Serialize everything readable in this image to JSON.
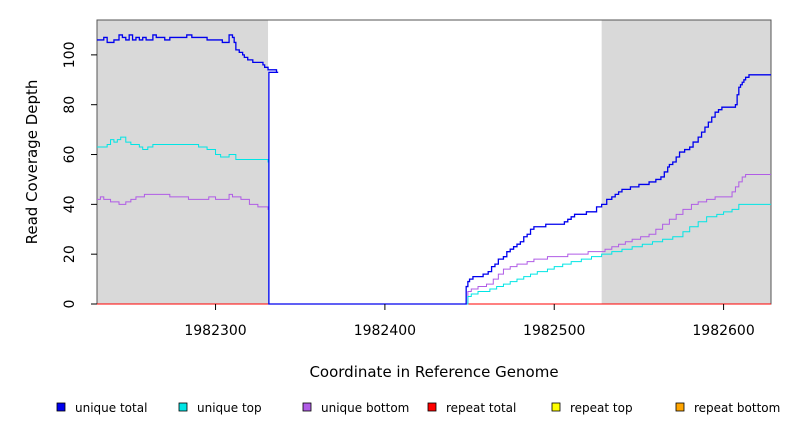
{
  "chart_data": {
    "type": "line",
    "xlabel": "Coordinate in Reference Genome",
    "ylabel": "Read Coverage Depth",
    "xlim": [
      1982230,
      1982628
    ],
    "ylim": [
      0,
      114
    ],
    "x_ticks": [
      1982300,
      1982400,
      1982500,
      1982600
    ],
    "y_ticks": [
      0,
      20,
      40,
      60,
      80,
      100
    ],
    "shaded_regions": [
      [
        1982230,
        1982331
      ],
      [
        1982528,
        1982628
      ]
    ],
    "shade_color": "#d9d9d9",
    "legend_position": "bottom",
    "series": [
      {
        "name": "unique total",
        "color": "#0000ee",
        "points": [
          [
            1982230,
            106
          ],
          [
            1982233,
            106
          ],
          [
            1982234,
            107
          ],
          [
            1982236,
            105
          ],
          [
            1982240,
            106
          ],
          [
            1982243,
            108
          ],
          [
            1982245,
            107
          ],
          [
            1982247,
            106
          ],
          [
            1982249,
            108
          ],
          [
            1982251,
            106
          ],
          [
            1982253,
            107
          ],
          [
            1982255,
            106
          ],
          [
            1982257,
            107
          ],
          [
            1982259,
            106
          ],
          [
            1982263,
            108
          ],
          [
            1982265,
            107
          ],
          [
            1982270,
            106
          ],
          [
            1982273,
            107
          ],
          [
            1982283,
            108
          ],
          [
            1982286,
            107
          ],
          [
            1982295,
            106
          ],
          [
            1982300,
            106
          ],
          [
            1982304,
            105
          ],
          [
            1982308,
            108
          ],
          [
            1982310,
            107
          ],
          [
            1982311,
            105
          ],
          [
            1982312,
            102
          ],
          [
            1982314,
            101
          ],
          [
            1982316,
            100
          ],
          [
            1982317,
            99
          ],
          [
            1982319,
            98
          ],
          [
            1982322,
            97
          ],
          [
            1982325,
            97
          ],
          [
            1982328,
            96
          ],
          [
            1982329,
            95
          ],
          [
            1982331,
            94
          ],
          [
            1982333,
            94
          ],
          [
            1982336,
            93
          ],
          [
            1982337,
            93
          ],
          [
            1982331.5,
            0
          ],
          [
            1982447,
            0
          ],
          [
            1982448,
            7
          ],
          [
            1982449,
            9
          ],
          [
            1982450,
            10
          ],
          [
            1982452,
            11
          ],
          [
            1982455,
            11
          ],
          [
            1982458,
            12
          ],
          [
            1982461,
            13
          ],
          [
            1982463,
            15
          ],
          [
            1982465,
            16
          ],
          [
            1982467,
            18
          ],
          [
            1982470,
            19
          ],
          [
            1982472,
            21
          ],
          [
            1982474,
            22
          ],
          [
            1982476,
            23
          ],
          [
            1982478,
            24
          ],
          [
            1982480,
            25
          ],
          [
            1982482,
            27
          ],
          [
            1982484,
            28
          ],
          [
            1982486,
            30
          ],
          [
            1982488,
            31
          ],
          [
            1982492,
            31
          ],
          [
            1982495,
            32
          ],
          [
            1982503,
            32
          ],
          [
            1982506,
            33
          ],
          [
            1982508,
            34
          ],
          [
            1982510,
            35
          ],
          [
            1982512,
            36
          ],
          [
            1982517,
            36
          ],
          [
            1982519,
            37
          ],
          [
            1982523,
            37
          ],
          [
            1982525,
            39
          ],
          [
            1982528,
            40
          ],
          [
            1982531,
            42
          ],
          [
            1982534,
            43
          ],
          [
            1982536,
            44
          ],
          [
            1982538,
            45
          ],
          [
            1982540,
            46
          ],
          [
            1982545,
            47
          ],
          [
            1982550,
            48
          ],
          [
            1982553,
            48
          ],
          [
            1982556,
            49
          ],
          [
            1982560,
            50
          ],
          [
            1982563,
            51
          ],
          [
            1982565,
            53
          ],
          [
            1982567,
            55
          ],
          [
            1982568,
            56
          ],
          [
            1982570,
            57
          ],
          [
            1982572,
            59
          ],
          [
            1982574,
            61
          ],
          [
            1982577,
            62
          ],
          [
            1982580,
            63
          ],
          [
            1982582,
            65
          ],
          [
            1982585,
            67
          ],
          [
            1982587,
            69
          ],
          [
            1982589,
            71
          ],
          [
            1982591,
            73
          ],
          [
            1982593,
            75
          ],
          [
            1982595,
            77
          ],
          [
            1982597,
            78
          ],
          [
            1982599,
            79
          ],
          [
            1982604,
            79
          ],
          [
            1982607,
            80
          ],
          [
            1982608,
            84
          ],
          [
            1982609,
            87
          ],
          [
            1982610,
            88
          ],
          [
            1982611,
            89
          ],
          [
            1982612,
            90
          ],
          [
            1982613,
            91
          ],
          [
            1982615,
            92
          ],
          [
            1982628,
            92
          ]
        ]
      },
      {
        "name": "unique top",
        "color": "#00e5e5",
        "points": [
          [
            1982230,
            63
          ],
          [
            1982234,
            63
          ],
          [
            1982236,
            64
          ],
          [
            1982238,
            66
          ],
          [
            1982240,
            65
          ],
          [
            1982242,
            66
          ],
          [
            1982244,
            67
          ],
          [
            1982247,
            65
          ],
          [
            1982250,
            64
          ],
          [
            1982253,
            64
          ],
          [
            1982255,
            63
          ],
          [
            1982257,
            62
          ],
          [
            1982260,
            63
          ],
          [
            1982263,
            64
          ],
          [
            1982270,
            64
          ],
          [
            1982280,
            64
          ],
          [
            1982290,
            63
          ],
          [
            1982295,
            62
          ],
          [
            1982300,
            60
          ],
          [
            1982303,
            59
          ],
          [
            1982308,
            60
          ],
          [
            1982312,
            58
          ],
          [
            1982320,
            58
          ],
          [
            1982331,
            57
          ],
          [
            1982331.5,
            0
          ],
          [
            1982448,
            0
          ],
          [
            1982449,
            3
          ],
          [
            1982451,
            4
          ],
          [
            1982455,
            5
          ],
          [
            1982458,
            5
          ],
          [
            1982462,
            6
          ],
          [
            1982466,
            7
          ],
          [
            1982470,
            8
          ],
          [
            1982474,
            9
          ],
          [
            1982478,
            10
          ],
          [
            1982482,
            11
          ],
          [
            1982486,
            12
          ],
          [
            1982490,
            13
          ],
          [
            1982496,
            14
          ],
          [
            1982500,
            15
          ],
          [
            1982505,
            16
          ],
          [
            1982510,
            17
          ],
          [
            1982516,
            18
          ],
          [
            1982522,
            19
          ],
          [
            1982528,
            20
          ],
          [
            1982534,
            21
          ],
          [
            1982540,
            22
          ],
          [
            1982546,
            23
          ],
          [
            1982552,
            24
          ],
          [
            1982558,
            25
          ],
          [
            1982564,
            26
          ],
          [
            1982570,
            27
          ],
          [
            1982576,
            29
          ],
          [
            1982580,
            31
          ],
          [
            1982585,
            33
          ],
          [
            1982590,
            35
          ],
          [
            1982596,
            36
          ],
          [
            1982600,
            37
          ],
          [
            1982605,
            38
          ],
          [
            1982609,
            40
          ],
          [
            1982628,
            40
          ]
        ]
      },
      {
        "name": "unique bottom",
        "color": "#b05ce6",
        "points": [
          [
            1982230,
            42
          ],
          [
            1982232,
            43
          ],
          [
            1982234,
            42
          ],
          [
            1982238,
            41
          ],
          [
            1982243,
            40
          ],
          [
            1982247,
            41
          ],
          [
            1982250,
            42
          ],
          [
            1982253,
            43
          ],
          [
            1982258,
            44
          ],
          [
            1982270,
            44
          ],
          [
            1982273,
            43
          ],
          [
            1982280,
            43
          ],
          [
            1982284,
            42
          ],
          [
            1982290,
            42
          ],
          [
            1982296,
            43
          ],
          [
            1982300,
            42
          ],
          [
            1982305,
            42
          ],
          [
            1982308,
            44
          ],
          [
            1982310,
            43
          ],
          [
            1982315,
            42
          ],
          [
            1982320,
            40
          ],
          [
            1982325,
            39
          ],
          [
            1982331,
            38
          ],
          [
            1982331.5,
            0
          ],
          [
            1982448,
            0
          ],
          [
            1982449,
            5
          ],
          [
            1982451,
            6
          ],
          [
            1982455,
            7
          ],
          [
            1982460,
            8
          ],
          [
            1982464,
            10
          ],
          [
            1982467,
            12
          ],
          [
            1982470,
            14
          ],
          [
            1982474,
            15
          ],
          [
            1982478,
            16
          ],
          [
            1982484,
            17
          ],
          [
            1982488,
            18
          ],
          [
            1982496,
            19
          ],
          [
            1982504,
            19
          ],
          [
            1982508,
            20
          ],
          [
            1982516,
            20
          ],
          [
            1982520,
            21
          ],
          [
            1982526,
            21
          ],
          [
            1982530,
            22
          ],
          [
            1982534,
            23
          ],
          [
            1982538,
            24
          ],
          [
            1982542,
            25
          ],
          [
            1982546,
            26
          ],
          [
            1982551,
            27
          ],
          [
            1982556,
            28
          ],
          [
            1982560,
            30
          ],
          [
            1982564,
            32
          ],
          [
            1982568,
            34
          ],
          [
            1982572,
            36
          ],
          [
            1982576,
            38
          ],
          [
            1982581,
            40
          ],
          [
            1982585,
            41
          ],
          [
            1982590,
            42
          ],
          [
            1982595,
            43
          ],
          [
            1982603,
            43
          ],
          [
            1982605,
            45
          ],
          [
            1982607,
            47
          ],
          [
            1982609,
            49
          ],
          [
            1982611,
            51
          ],
          [
            1982613,
            52
          ],
          [
            1982628,
            52
          ]
        ]
      },
      {
        "name": "repeat total",
        "color": "#ff0000",
        "points": [
          [
            1982230,
            0
          ],
          [
            1982628,
            0
          ]
        ]
      },
      {
        "name": "repeat top",
        "color": "#ffff00",
        "points": [
          [
            1982230,
            0
          ],
          [
            1982628,
            0
          ]
        ]
      },
      {
        "name": "repeat bottom",
        "color": "#ffa500",
        "points": [
          [
            1982230,
            0
          ],
          [
            1982628,
            0
          ]
        ]
      }
    ]
  }
}
